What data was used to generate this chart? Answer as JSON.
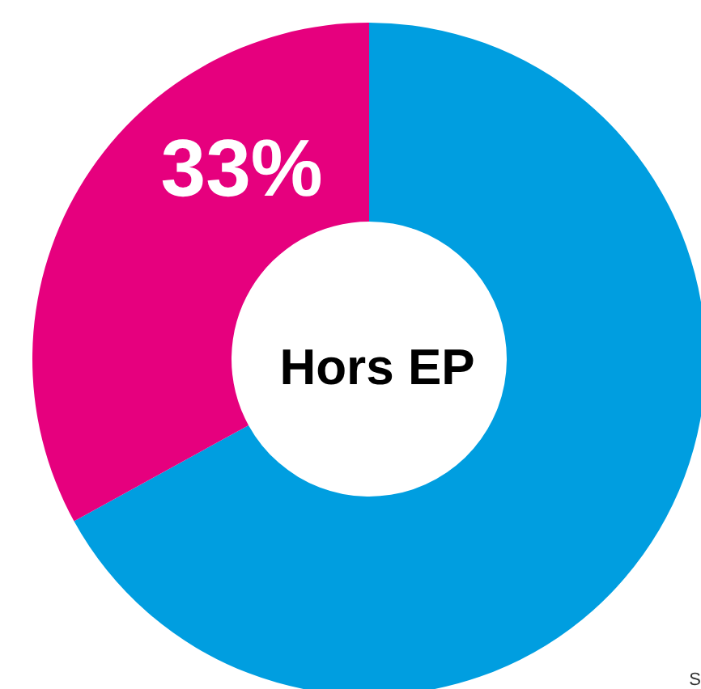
{
  "chart_data": {
    "type": "donut",
    "title": "Hors EP",
    "categories": [
      null,
      null
    ],
    "values": [
      67,
      33
    ],
    "colors": [
      "#009ee0",
      "#e6007e"
    ],
    "value_labels": [
      null,
      "33%"
    ],
    "annotations": [
      "S"
    ]
  }
}
